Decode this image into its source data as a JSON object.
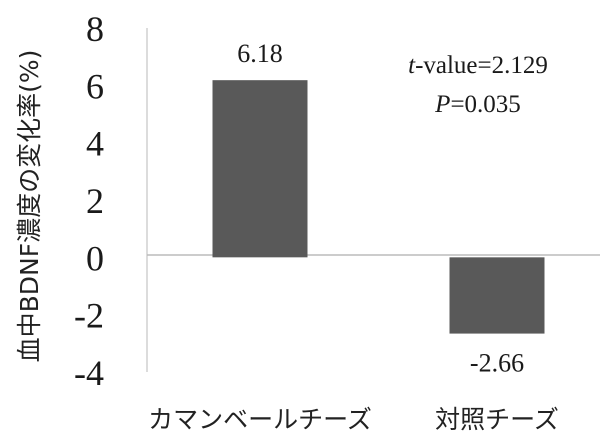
{
  "chart_data": {
    "type": "bar",
    "title": "",
    "xlabel": "",
    "ylabel": "血中BDNF濃度の変化率(%)",
    "categories": [
      "カマンベールチーズ",
      "対照チーズ"
    ],
    "values": [
      6.18,
      -2.66
    ],
    "data_labels": [
      "6.18",
      "-2.66"
    ],
    "ylim": [
      -4,
      8
    ],
    "yticks": [
      8,
      6,
      4,
      2,
      0,
      -2,
      -4
    ],
    "grid": false,
    "legend": "none",
    "bar_color": "#595959",
    "annotation": {
      "t_label": "t",
      "t_rest": "-value=2.129",
      "p_label": "P",
      "p_rest": "=0.035"
    }
  }
}
